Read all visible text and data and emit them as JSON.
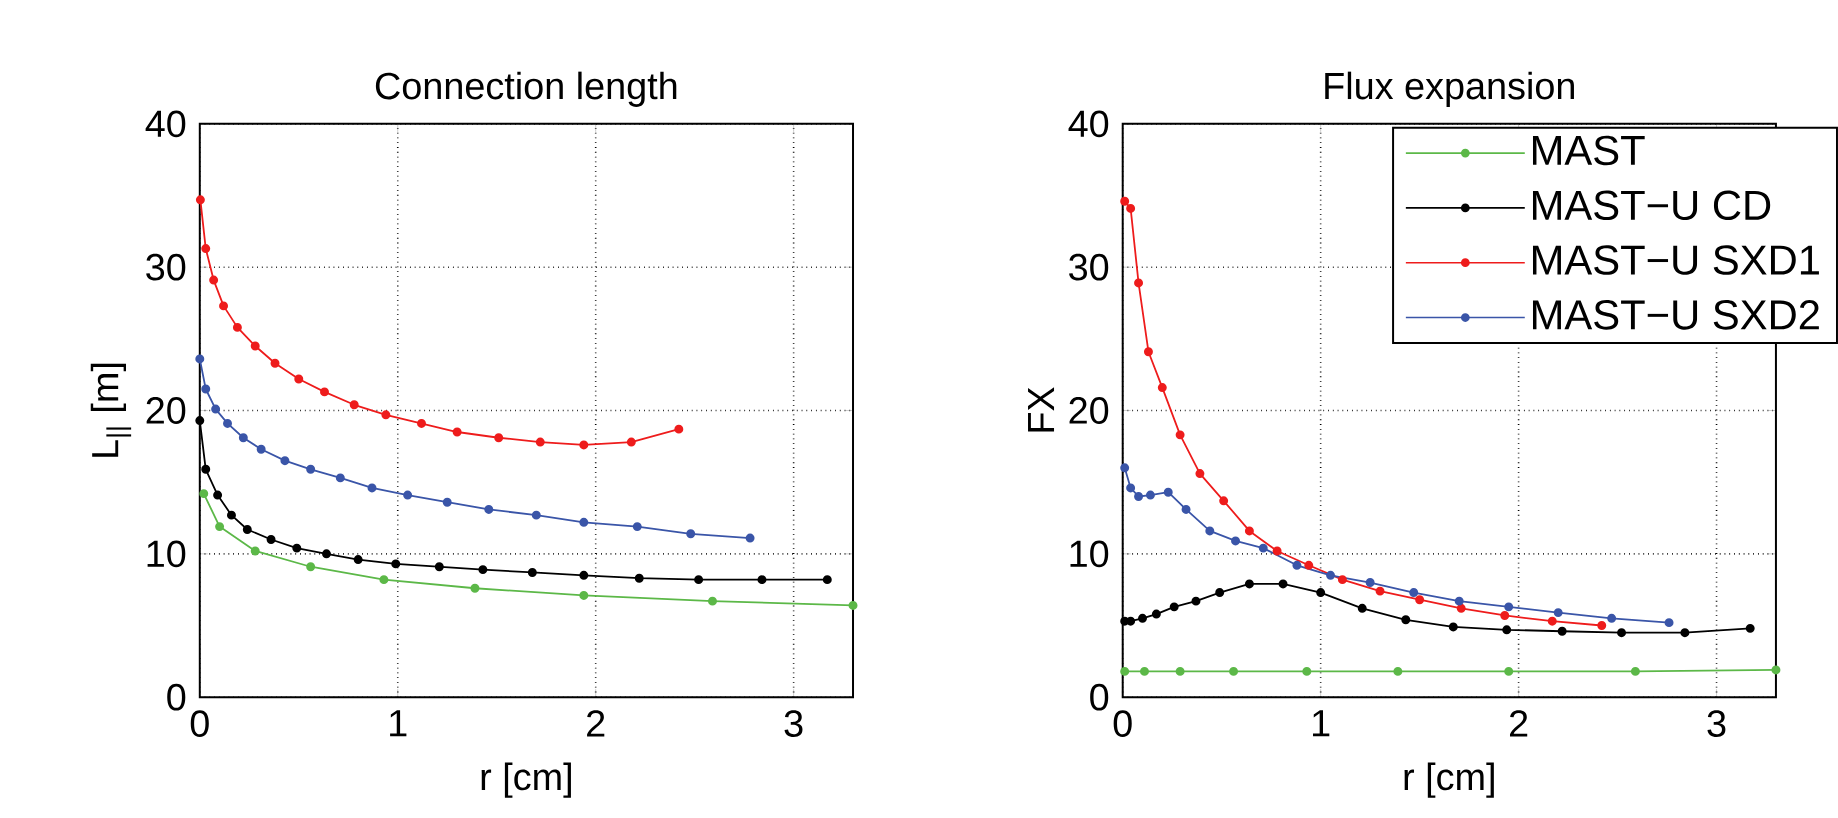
{
  "chart_data": [
    {
      "type": "line",
      "title": "Connection length",
      "xlabel": "r [cm]",
      "ylabel": "L$_{||}$ [m]",
      "xlim": [
        0,
        3.3
      ],
      "xticks": [
        0,
        1,
        2,
        3
      ],
      "ylim": [
        0,
        40
      ],
      "yticks": [
        0,
        10,
        20,
        30,
        40
      ],
      "grid": true,
      "marker": "circle",
      "line_style": "solid",
      "series": [
        {
          "color": "#5cb848",
          "x": [
            0.02,
            0.1,
            0.28,
            0.56,
            0.93,
            1.39,
            1.94,
            2.59,
            3.3
          ],
          "values": [
            14.2,
            11.9,
            10.2,
            9.1,
            8.2,
            7.6,
            7.1,
            6.7,
            6.4
          ]
        },
        {
          "color": "#000000",
          "x": [
            0,
            0.03,
            0.09,
            0.16,
            0.24,
            0.36,
            0.49,
            0.64,
            0.8,
            0.99,
            1.21,
            1.43,
            1.68,
            1.94,
            2.22,
            2.52,
            2.84,
            3.17
          ],
          "values": [
            19.3,
            15.9,
            14.1,
            12.7,
            11.7,
            11.0,
            10.4,
            10.0,
            9.6,
            9.3,
            9.1,
            8.9,
            8.7,
            8.5,
            8.3,
            8.2,
            8.2,
            8.2
          ]
        },
        {
          "color": "#ee1c1c",
          "x": [
            0.003,
            0.03,
            0.07,
            0.12,
            0.19,
            0.28,
            0.38,
            0.5,
            0.63,
            0.78,
            0.94,
            1.12,
            1.3,
            1.51,
            1.72,
            1.94,
            2.18,
            2.42
          ],
          "values": [
            34.7,
            31.3,
            29.1,
            27.3,
            25.8,
            24.5,
            23.3,
            22.2,
            21.3,
            20.4,
            19.7,
            19.1,
            18.5,
            18.1,
            17.8,
            17.6,
            17.8,
            18.7
          ]
        },
        {
          "color": "#3a55a8",
          "x": [
            0,
            0.03,
            0.08,
            0.14,
            0.22,
            0.31,
            0.43,
            0.56,
            0.71,
            0.87,
            1.05,
            1.25,
            1.46,
            1.7,
            1.94,
            2.21,
            2.48,
            2.78
          ],
          "values": [
            23.6,
            21.5,
            20.1,
            19.1,
            18.1,
            17.3,
            16.5,
            15.9,
            15.3,
            14.6,
            14.1,
            13.6,
            13.1,
            12.7,
            12.2,
            11.9,
            11.4,
            11.1
          ]
        }
      ]
    },
    {
      "type": "line",
      "title": "Flux expansion",
      "xlabel": "r [cm]",
      "ylabel": "FX",
      "xlim": [
        0,
        3.3
      ],
      "xticks": [
        0,
        1,
        2,
        3
      ],
      "ylim": [
        0,
        40
      ],
      "yticks": [
        0,
        10,
        20,
        30,
        40
      ],
      "grid": true,
      "marker": "circle",
      "line_style": "solid",
      "legend": "top right",
      "series": [
        {
          "name": "MAST",
          "color": "#5cb848",
          "x": [
            0.01,
            0.11,
            0.29,
            0.56,
            0.93,
            1.39,
            1.95,
            2.59,
            3.3
          ],
          "values": [
            1.8,
            1.8,
            1.8,
            1.8,
            1.8,
            1.8,
            1.8,
            1.8,
            1.9
          ]
        },
        {
          "name": "MAST−U CD",
          "color": "#000000",
          "x": [
            0.01,
            0.04,
            0.1,
            0.17,
            0.26,
            0.37,
            0.49,
            0.64,
            0.81,
            1.0,
            1.21,
            1.43,
            1.67,
            1.94,
            2.22,
            2.52,
            2.84,
            3.17
          ],
          "values": [
            5.3,
            5.3,
            5.5,
            5.8,
            6.3,
            6.7,
            7.3,
            7.9,
            7.9,
            7.3,
            6.2,
            5.4,
            4.9,
            4.7,
            4.6,
            4.5,
            4.5,
            4.8
          ]
        },
        {
          "name": "MAST−U SXD1",
          "color": "#ee1c1c",
          "x": [
            0.01,
            0.04,
            0.08,
            0.13,
            0.2,
            0.29,
            0.39,
            0.51,
            0.64,
            0.78,
            0.94,
            1.11,
            1.3,
            1.5,
            1.71,
            1.93,
            2.17,
            2.42
          ],
          "values": [
            34.6,
            34.1,
            28.9,
            24.1,
            21.6,
            18.3,
            15.6,
            13.7,
            11.6,
            10.2,
            9.2,
            8.2,
            7.4,
            6.8,
            6.2,
            5.7,
            5.3,
            5.0
          ]
        },
        {
          "name": "MAST−U SXD2",
          "color": "#3a55a8",
          "x": [
            0.01,
            0.04,
            0.08,
            0.14,
            0.23,
            0.32,
            0.44,
            0.57,
            0.71,
            0.88,
            1.05,
            1.25,
            1.47,
            1.7,
            1.95,
            2.2,
            2.47,
            2.76
          ],
          "values": [
            16.0,
            14.6,
            14.0,
            14.1,
            14.3,
            13.1,
            11.6,
            10.9,
            10.4,
            9.2,
            8.5,
            8.0,
            7.3,
            6.7,
            6.3,
            5.9,
            5.5,
            5.2
          ]
        }
      ]
    }
  ]
}
